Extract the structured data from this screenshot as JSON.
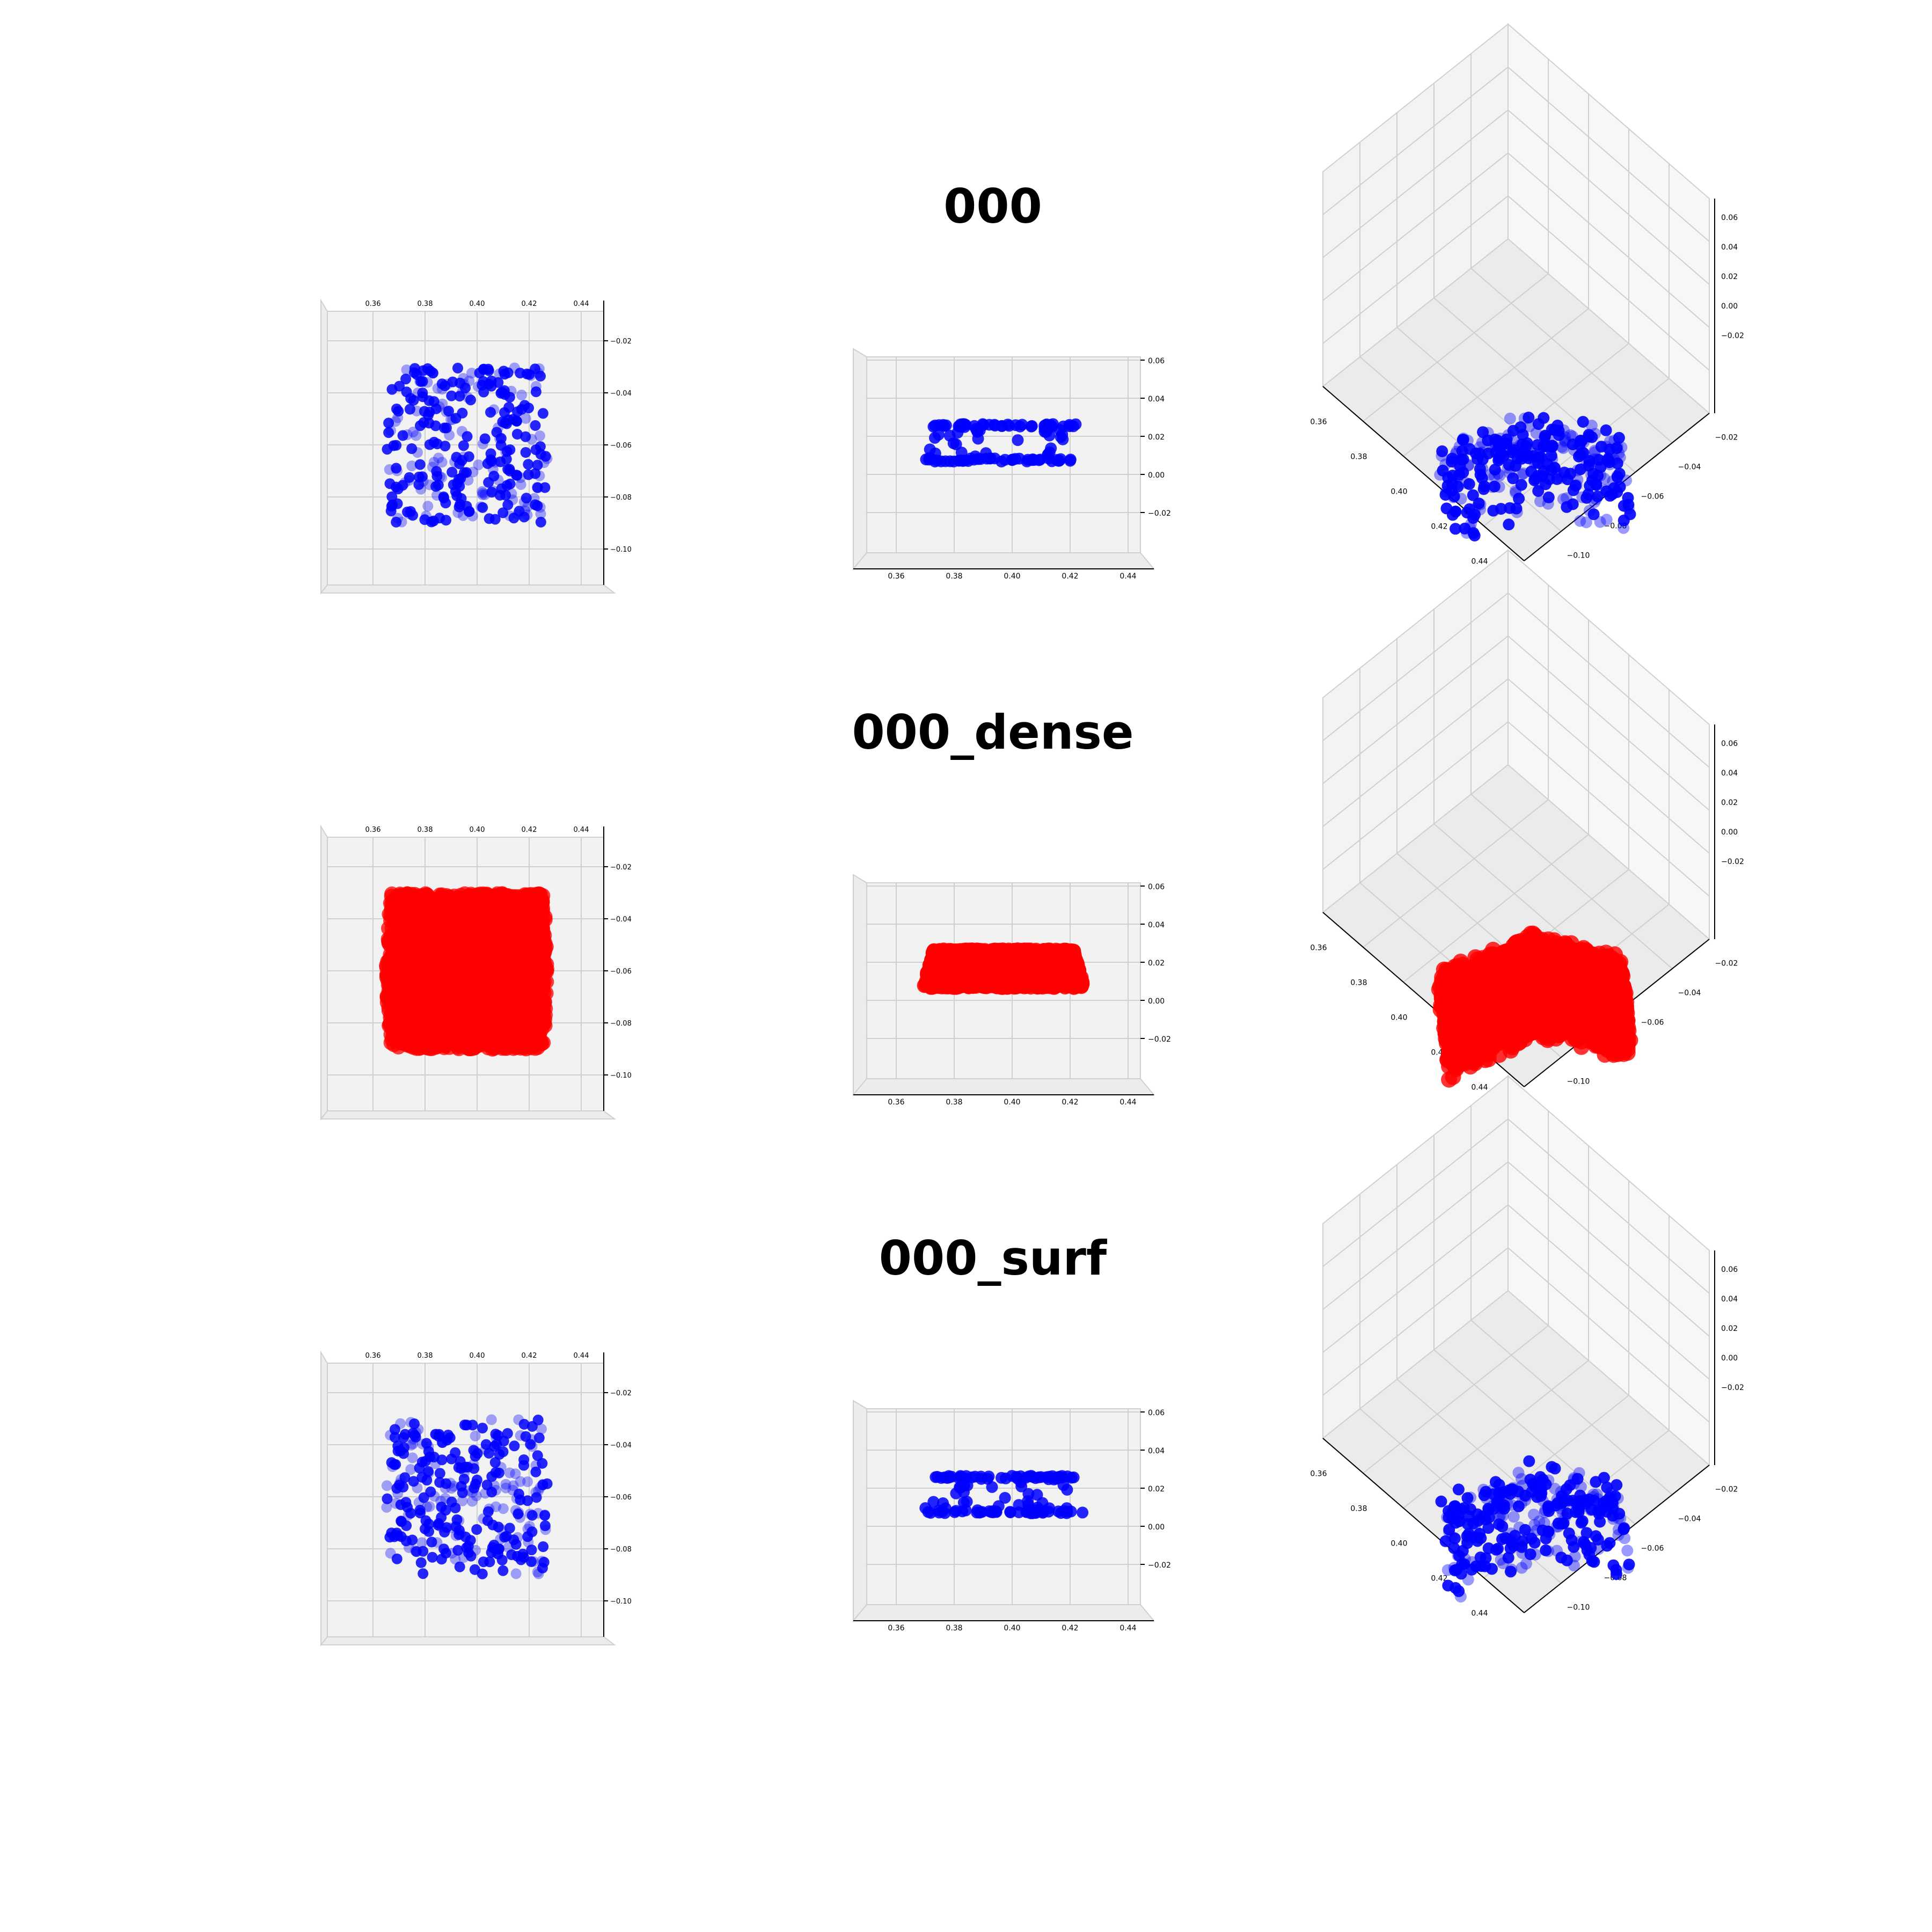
{
  "chart_data": [
    {
      "type": "scatter",
      "title": "000",
      "color": "#0000ff",
      "panels": [
        {
          "view": "top",
          "x_ticks": [
            "0.36",
            "0.38",
            "0.40",
            "0.42",
            "0.44"
          ],
          "z_ticks": [
            "−0.02",
            "−0.04",
            "−0.06",
            "−0.08",
            "−0.10"
          ],
          "x_range": [
            0.36,
            0.44
          ],
          "y_range": [
            -0.1,
            -0.02
          ]
        },
        {
          "view": "side",
          "x_ticks": [
            "0.36",
            "0.38",
            "0.40",
            "0.42",
            "0.44"
          ],
          "z_ticks": [
            "0.06",
            "0.04",
            "0.02",
            "0.00",
            "−0.02"
          ],
          "x_range": [
            0.36,
            0.44
          ],
          "z_range": [
            -0.02,
            0.06
          ]
        },
        {
          "view": "iso",
          "x_ticks": [
            "0.36",
            "0.38",
            "0.40",
            "0.42",
            "0.44"
          ],
          "y_ticks": [
            "−0.02",
            "−0.04",
            "−0.06",
            "−0.08",
            "−0.10"
          ],
          "z_ticks": [
            "0.06",
            "0.04",
            "0.02",
            "0.00",
            "−0.02"
          ]
        }
      ],
      "points": {
        "x_range": [
          0.365,
          0.428
        ],
        "y_range": [
          -0.091,
          -0.033
        ],
        "z_range": [
          0.0,
          0.022
        ],
        "count": 300
      }
    },
    {
      "type": "scatter",
      "title": "000_dense",
      "color": "#ff0000",
      "panels": [
        {
          "view": "top",
          "x_ticks": [
            "0.36",
            "0.38",
            "0.40",
            "0.42",
            "0.44"
          ],
          "z_ticks": [
            "−0.02",
            "−0.04",
            "−0.06",
            "−0.08",
            "−0.10"
          ],
          "x_range": [
            0.36,
            0.44
          ],
          "y_range": [
            -0.1,
            -0.02
          ]
        },
        {
          "view": "side",
          "x_ticks": [
            "0.36",
            "0.38",
            "0.40",
            "0.42",
            "0.44"
          ],
          "z_ticks": [
            "0.06",
            "0.04",
            "0.02",
            "0.00",
            "−0.02"
          ],
          "x_range": [
            0.36,
            0.44
          ],
          "z_range": [
            -0.02,
            0.06
          ]
        },
        {
          "view": "iso",
          "x_ticks": [
            "0.36",
            "0.38",
            "0.40",
            "0.42",
            "0.44"
          ],
          "y_ticks": [
            "−0.02",
            "−0.04",
            "−0.06",
            "−0.08",
            "−0.10"
          ],
          "z_ticks": [
            "0.06",
            "0.04",
            "0.02",
            "0.00",
            "−0.02"
          ]
        }
      ],
      "points": {
        "x_range": [
          0.365,
          0.428
        ],
        "y_range": [
          -0.091,
          -0.033
        ],
        "z_range": [
          0.0,
          0.022
        ],
        "count": 2500
      }
    },
    {
      "type": "scatter",
      "title": "000_surf",
      "color": "#0000ff",
      "panels": [
        {
          "view": "top",
          "x_ticks": [
            "0.36",
            "0.38",
            "0.40",
            "0.42",
            "0.44"
          ],
          "z_ticks": [
            "−0.02",
            "−0.04",
            "−0.06",
            "−0.08",
            "−0.10"
          ],
          "x_range": [
            0.36,
            0.44
          ],
          "y_range": [
            -0.1,
            -0.02
          ]
        },
        {
          "view": "side",
          "x_ticks": [
            "0.36",
            "0.38",
            "0.40",
            "0.42",
            "0.44"
          ],
          "z_ticks": [
            "0.06",
            "0.04",
            "0.02",
            "0.00",
            "−0.02"
          ],
          "x_range": [
            0.36,
            0.44
          ],
          "z_range": [
            -0.02,
            0.06
          ]
        },
        {
          "view": "iso",
          "x_ticks": [
            "0.36",
            "0.38",
            "0.40",
            "0.42",
            "0.44"
          ],
          "y_ticks": [
            "−0.02",
            "−0.04",
            "−0.06",
            "−0.08",
            "−0.10"
          ],
          "z_ticks": [
            "0.06",
            "0.04",
            "0.02",
            "0.00",
            "−0.02"
          ]
        }
      ],
      "points": {
        "x_range": [
          0.365,
          0.428
        ],
        "y_range": [
          -0.091,
          -0.033
        ],
        "z_range": [
          0.0,
          0.022
        ],
        "count": 300
      }
    }
  ]
}
